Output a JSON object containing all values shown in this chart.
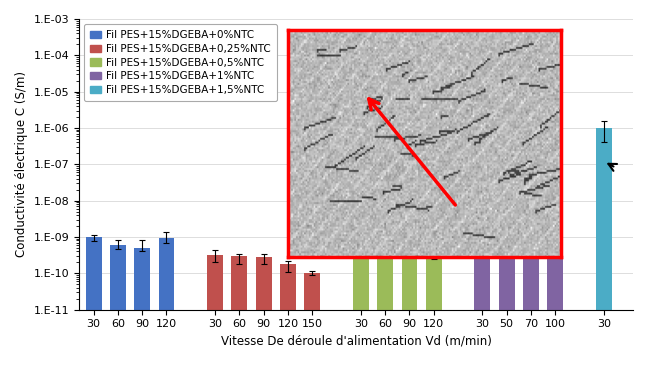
{
  "title": "",
  "xlabel": "Vitesse De déroule d'alimentation Vd (m/min)",
  "ylabel": "Conductivité électrique C (S/m)",
  "background_color": "#ffffff",
  "groups": [
    {
      "label": "Fil PES+15%DGEBA+0%NTC",
      "color": "#4472c4",
      "xticks": [
        "30",
        "60",
        "90",
        "120"
      ],
      "values": [
        1e-09,
        6e-10,
        5e-10,
        9.5e-10
      ],
      "yerr_up": [
        1.5e-10,
        2.5e-10,
        3.5e-10,
        4e-10
      ],
      "yerr_dn": [
        2.5e-10,
        1.2e-10,
        1e-10,
        2.5e-10
      ]
    },
    {
      "label": "Fil PES+15%DGEBA+0,25%NTC",
      "color": "#c0504d",
      "xticks": [
        "30",
        "60",
        "90",
        "120",
        "150"
      ],
      "values": [
        3.2e-10,
        3e-10,
        2.8e-10,
        1.8e-10,
        1e-10
      ],
      "yerr_up": [
        1.2e-10,
        5e-11,
        5e-11,
        4e-11,
        1.5e-11
      ],
      "yerr_dn": [
        1.2e-10,
        1.2e-10,
        1e-10,
        7e-11,
        8e-12
      ]
    },
    {
      "label": "Fil PES+15%DGEBA+0,5%NTC",
      "color": "#9bbb59",
      "xticks": [
        "30",
        "60",
        "90",
        "120"
      ],
      "values": [
        1.6e-09,
        1.2e-09,
        1e-09,
        3.5e-10
      ],
      "yerr_up": [
        2.5e-10,
        2e-10,
        1.5e-10,
        6e-11
      ],
      "yerr_dn": [
        4e-10,
        3e-10,
        2e-10,
        1e-10
      ]
    },
    {
      "label": "Fil PES+15%DGEBA+1%NTC",
      "color": "#8064a2",
      "xticks": [
        "30",
        "50",
        "70",
        "100"
      ],
      "values": [
        4.5e-09,
        3.5e-09,
        1e-09,
        1e-09
      ],
      "yerr_up": [
        5e-10,
        4e-10,
        3e-10,
        2.5e-10
      ],
      "yerr_dn": [
        1.2e-09,
        1e-09,
        3.5e-10,
        4e-10
      ]
    },
    {
      "label": "Fil PES+15%DGEBA+1,5%NTC",
      "color": "#4bacc6",
      "xticks": [
        "30"
      ],
      "values": [
        1e-06
      ],
      "yerr_up": [
        6e-07
      ],
      "yerr_dn": [
        6e-07
      ]
    }
  ],
  "ylabels": [
    "1.E-11",
    "1.E-10",
    "1.E-09",
    "1.E-08",
    "1.E-07",
    "1.E-06",
    "1.E-05",
    "1.E-04",
    "1.E-03"
  ],
  "legend_fontsize": 7.5,
  "axis_fontsize": 8.5,
  "tick_fontsize": 8
}
